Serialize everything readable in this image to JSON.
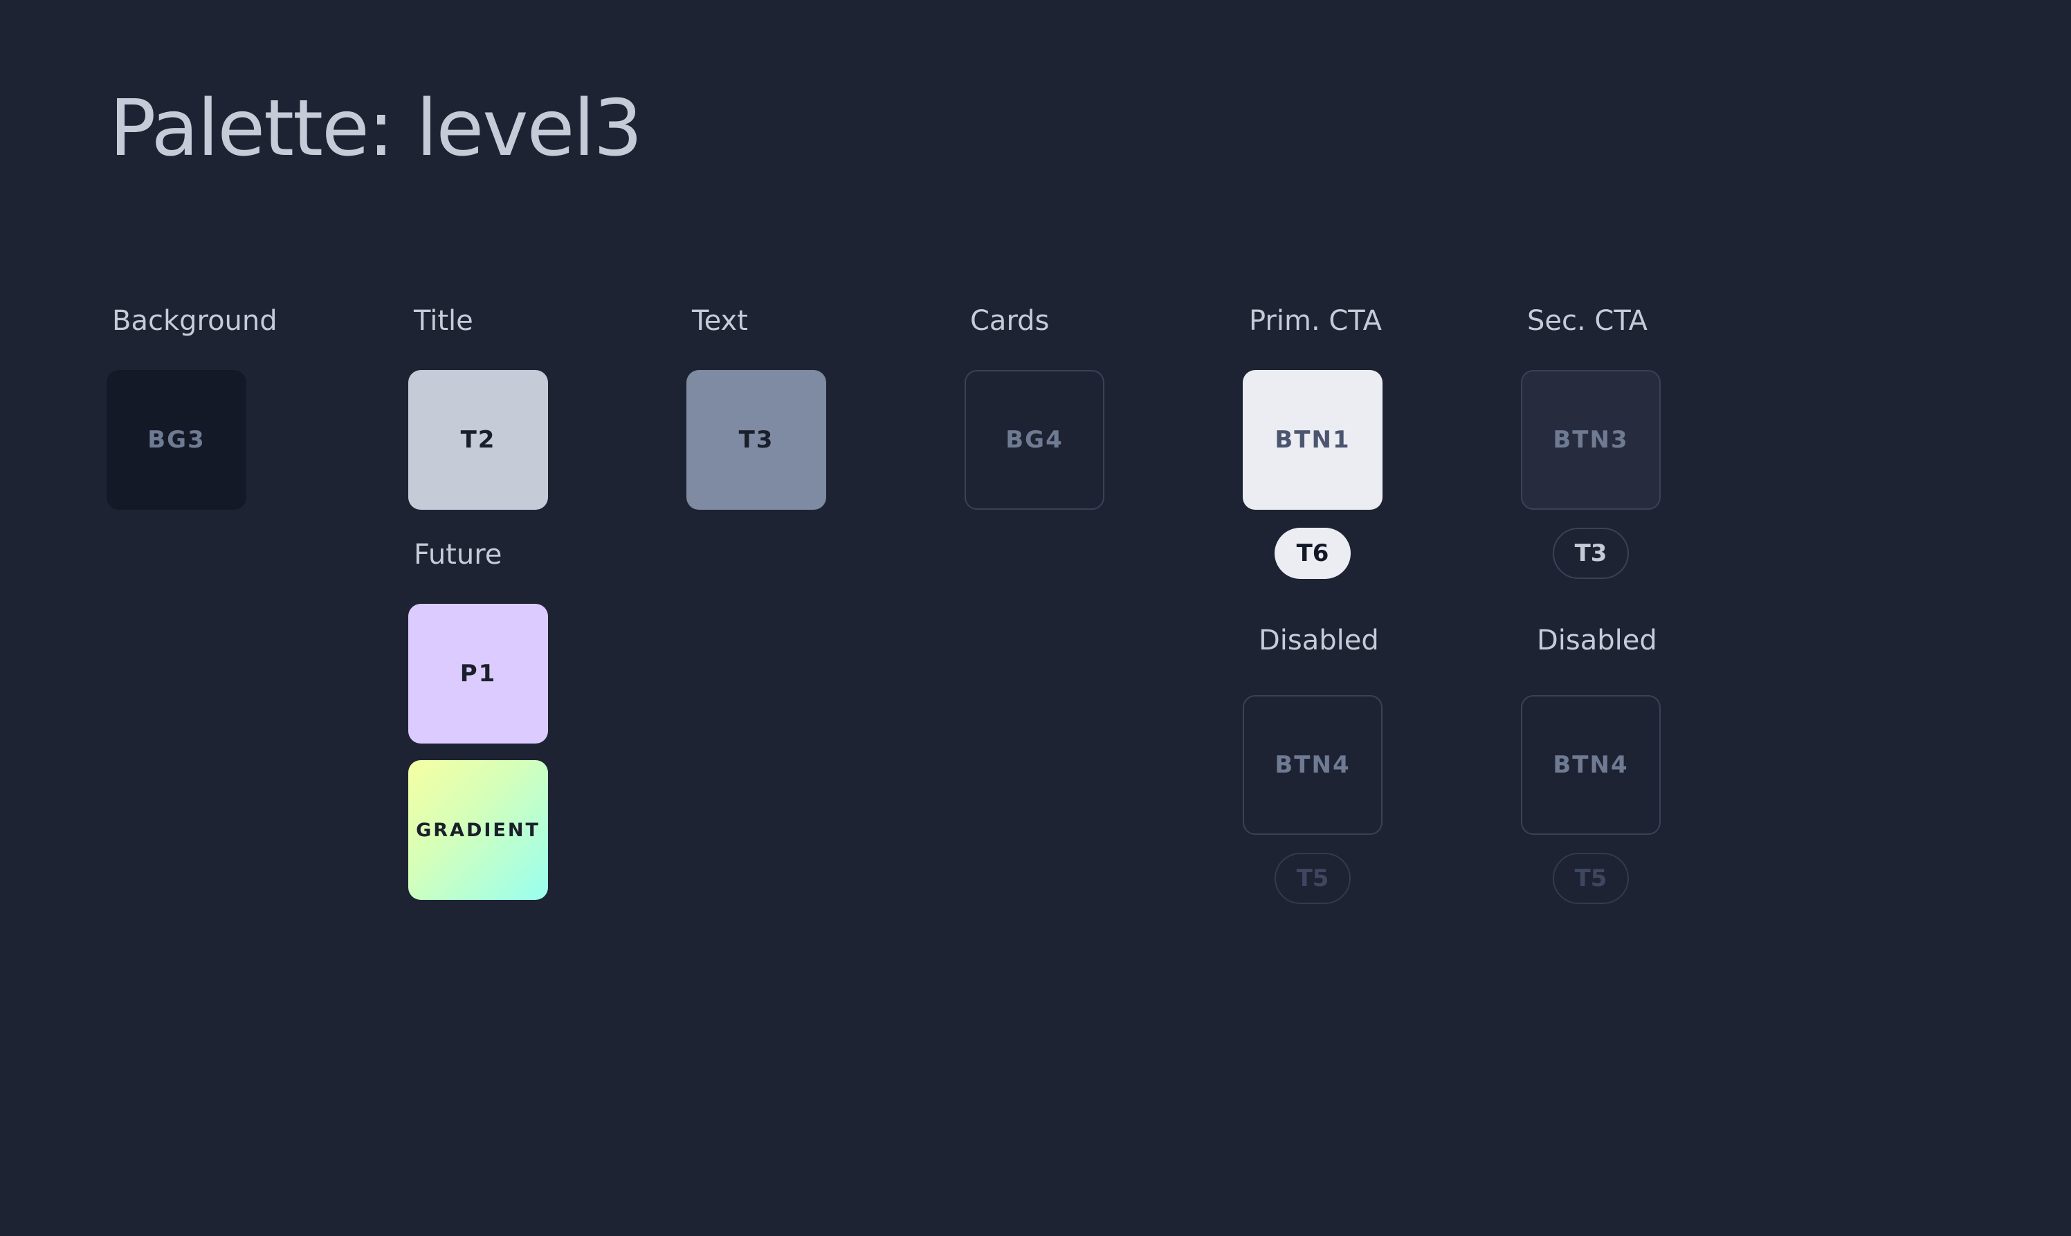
{
  "page": {
    "title": "Palette: level3"
  },
  "colors": {
    "page_background": "#1e2334",
    "label_text": "#c6cbd8",
    "bg3": "#141927",
    "t2": "#c6cbd8",
    "t3": "#7f8aa3",
    "bg4": "#1e2334",
    "btn1": "#ebedf2",
    "btn3": "#262c3d",
    "btn4": "#1e2334",
    "p1": "#dccbff",
    "t6": "#ebedf2",
    "gradient_start": "#f6ffa2",
    "gradient_end": "#98fff0"
  },
  "groups": {
    "background": {
      "label": "Background",
      "swatch": "BG3"
    },
    "title": {
      "label": "Title",
      "swatch": "T2"
    },
    "future": {
      "label": "Future",
      "swatch": "P1",
      "gradient": "GRADIENT"
    },
    "text": {
      "label": "Text",
      "swatch": "T3"
    },
    "cards": {
      "label": "Cards",
      "swatch": "BG4"
    },
    "prim_cta": {
      "label": "Prim. CTA",
      "swatch": "BTN1",
      "text_pill": "T6",
      "disabled_label": "Disabled",
      "disabled_swatch": "BTN4",
      "disabled_pill": "T5"
    },
    "sec_cta": {
      "label": "Sec. CTA",
      "swatch": "BTN3",
      "text_pill": "T3",
      "disabled_label": "Disabled",
      "disabled_swatch": "BTN4",
      "disabled_pill": "T5"
    }
  }
}
